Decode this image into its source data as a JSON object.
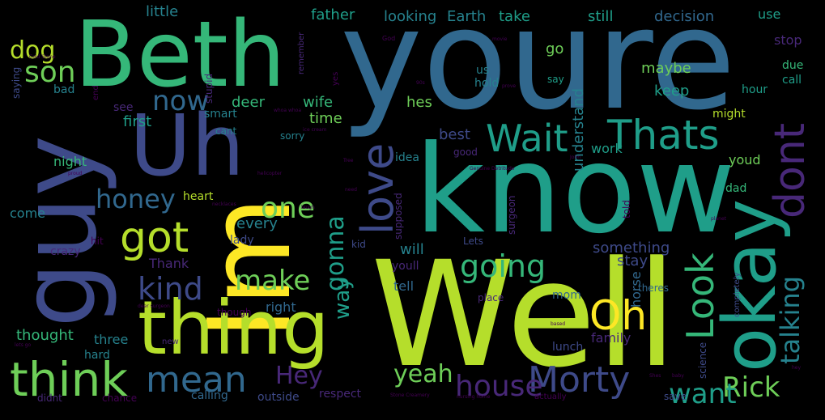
{
  "words": {
    "youre": "youre",
    "Beth": "Beth",
    "know": "know",
    "Well": "Well",
    "Im": "Im",
    "guy": "guy",
    "thing": "thing",
    "Uh": "Uh",
    "okay": "okay",
    "Thats": "Thats",
    "Wait": "Wait",
    "dont": "dont",
    "think": "think",
    "mean": "mean",
    "got": "got",
    "love": "love",
    "Look": "Look",
    "Oh": "Oh",
    "Morty": "Morty",
    "house": "house",
    "Rick": "Rick",
    "want": "want",
    "going": "going",
    "one": "one",
    "kind": "kind",
    "make": "make",
    "now": "now",
    "son": "son",
    "dog": "dog",
    "honey": "honey",
    "talking": "talking",
    "gonna": "gonna",
    "yeah": "yeah",
    "Hey": "Hey",
    "way": "way",
    "little": "little",
    "father": "father",
    "looking": "looking",
    "Earth": "Earth",
    "take": "take",
    "still": "still",
    "decision": "decision",
    "use": "use",
    "go": "go",
    "stop": "stop",
    "maybe": "maybe",
    "keep": "keep",
    "hes": "hes",
    "best": "best",
    "understand": "understand",
    "work": "work",
    "youd": "youd",
    "first": "first",
    "time": "time",
    "deer": "deer",
    "wife": "wife",
    "see": "see",
    "smart": "smart",
    "night": "night",
    "heart": "heart",
    "every": "every",
    "come": "come",
    "Thank": "Thank",
    "lady": "lady",
    "crazy": "crazy",
    "something": "something",
    "stay": "stay",
    "will": "will",
    "youll": "youll",
    "tell": "tell",
    "right": "right",
    "thought": "thought",
    "three": "three",
    "hard": "hard",
    "mom": "mom",
    "horse": "horse",
    "family": "family",
    "lunch": "lunch",
    "calling": "calling",
    "outside": "outside",
    "respect": "respect",
    "chance": "chance",
    "didnt": "didnt",
    "science": "science",
    "save": "save",
    "idea": "idea",
    "good": "good",
    "sorry": "sorry",
    "cant": "cant",
    "might": "might",
    "hour": "hour",
    "call": "call",
    "due": "due",
    "say": "say",
    "hold": "hold",
    "us": "us",
    "bad": "bad",
    "saying": "saying",
    "stupid": "stupid",
    "kid": "kid",
    "supposed": "supposed",
    "surgeon": "surgeon",
    "told": "told",
    "dad": "dad",
    "Lets": "Lets",
    "place": "place",
    "theres": "theres",
    "completely": "completely",
    "though": "though",
    "hit": "hit",
    "new": "new",
    "actually": "actually",
    "end": "end",
    "remember": "remember",
    "yes": "yes",
    "God": "God",
    "ice_cream": "ice cream",
    "helicopter": "helicopter",
    "necklaces": "necklaces",
    "laugh": "laugh",
    "Cold_Stone": "Cold Stone",
    "Stone_Creamery": "Stone Creamery",
    "nursing_home": "nursing home",
    "planet": "planet",
    "John": "John",
    "proud": "proud",
    "Shes": "Shes",
    "baby": "baby",
    "Genuine_Detritude": "Genuine Detritude",
    "deer_surgeon": "deer surgeon",
    "lets_go": "lets go",
    "whoa_whoa": "whoa whoa",
    "need": "need",
    "based": "based",
    "Tree": "Tree",
    "movie": "movie",
    "prove": "prove",
    "90s": "90s",
    "hey": "hey"
  }
}
